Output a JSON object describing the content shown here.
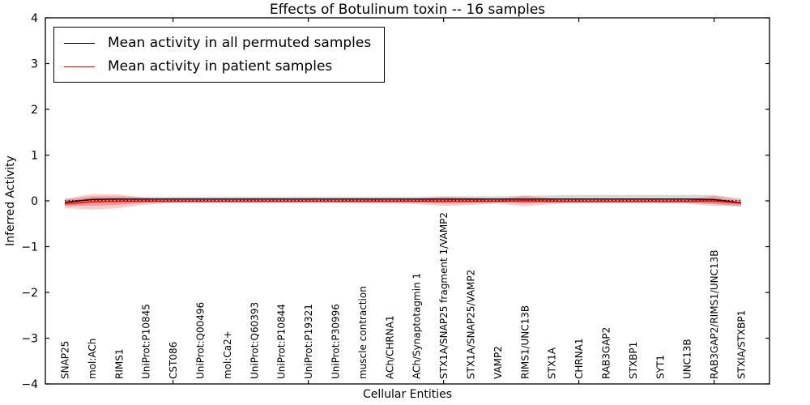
{
  "chart_data": {
    "type": "line",
    "title": "Effects of Botulinum toxin -- 16 samples",
    "xlabel": "Cellular Entities",
    "ylabel": "Inferred Activity",
    "ylim": [
      -4,
      4
    ],
    "ytick_step": 1,
    "xtick_values": [
      5,
      10,
      15,
      20,
      25
    ],
    "grid": false,
    "legend_position": "upper-left",
    "categories": [
      "SNAP25",
      "mol:ACh",
      "RIMS1",
      "UniProt:P10845",
      "CST086",
      "UniProt:Q00496",
      "mol:Ca2+",
      "UniProt:Q60393",
      "UniProt:P10844",
      "UniProt:P19321",
      "UniProt:P30996",
      "muscle contraction",
      "ACh/CHRNA1",
      "ACh/Synaptotagmin 1",
      "STX1A/SNAP25 fragment 1/VAMP2",
      "STX1A/SNAP25/VAMP2",
      "VAMP2",
      "RIMS1/UNC13B",
      "STX1A",
      "CHRNA1",
      "RAB3GAP2",
      "STXBP1",
      "SYT1",
      "UNC13B",
      "RAB3GAP2/RIMS1/UNC13B",
      "STXIA/STXBP1"
    ],
    "series": [
      {
        "name": "Mean activity in all permuted samples",
        "color": "#000000",
        "style": "solid",
        "values": [
          -0.03,
          0.03,
          0.04,
          0.04,
          0.04,
          0.04,
          0.04,
          0.04,
          0.04,
          0.04,
          0.04,
          0.04,
          0.04,
          0.04,
          0.04,
          0.04,
          0.04,
          0.04,
          0.04,
          0.04,
          0.04,
          0.04,
          0.04,
          0.04,
          0.03,
          -0.04
        ]
      },
      {
        "name": "Mean activity in patient samples",
        "color": "#ff0000",
        "style": "solid",
        "values": [
          -0.06,
          -0.02,
          -0.01,
          -0.01,
          -0.01,
          -0.01,
          -0.01,
          -0.01,
          -0.01,
          -0.01,
          -0.01,
          -0.01,
          -0.01,
          -0.01,
          -0.01,
          -0.01,
          -0.01,
          0.0,
          -0.01,
          -0.01,
          -0.01,
          -0.01,
          -0.01,
          -0.01,
          0.0,
          -0.05
        ]
      }
    ],
    "bands": [
      {
        "name": "permuted-samples-spread",
        "series_ref": 0,
        "color": "#999999",
        "opacity": 0.38,
        "core_scale": 0,
        "core_opacity": 0,
        "halfwidths": [
          0.07,
          0.07,
          0.06,
          0.05,
          0.05,
          0.05,
          0.05,
          0.05,
          0.05,
          0.05,
          0.05,
          0.05,
          0.05,
          0.05,
          0.06,
          0.06,
          0.06,
          0.07,
          0.08,
          0.09,
          0.09,
          0.09,
          0.09,
          0.09,
          0.1,
          0.09
        ]
      },
      {
        "name": "patient-samples-spread",
        "series_ref": 1,
        "color": "#ff0000",
        "opacity": 0.2,
        "core_scale": 0.5,
        "core_opacity": 0.28,
        "halfwidths": [
          0.1,
          0.17,
          0.15,
          0.07,
          0.04,
          0.04,
          0.04,
          0.04,
          0.04,
          0.04,
          0.04,
          0.05,
          0.05,
          0.06,
          0.1,
          0.08,
          0.05,
          0.12,
          0.06,
          0.04,
          0.04,
          0.04,
          0.04,
          0.05,
          0.11,
          0.06
        ]
      }
    ],
    "zero_line": {
      "style": "dotted",
      "color": "#000000",
      "y": 0.01
    }
  }
}
